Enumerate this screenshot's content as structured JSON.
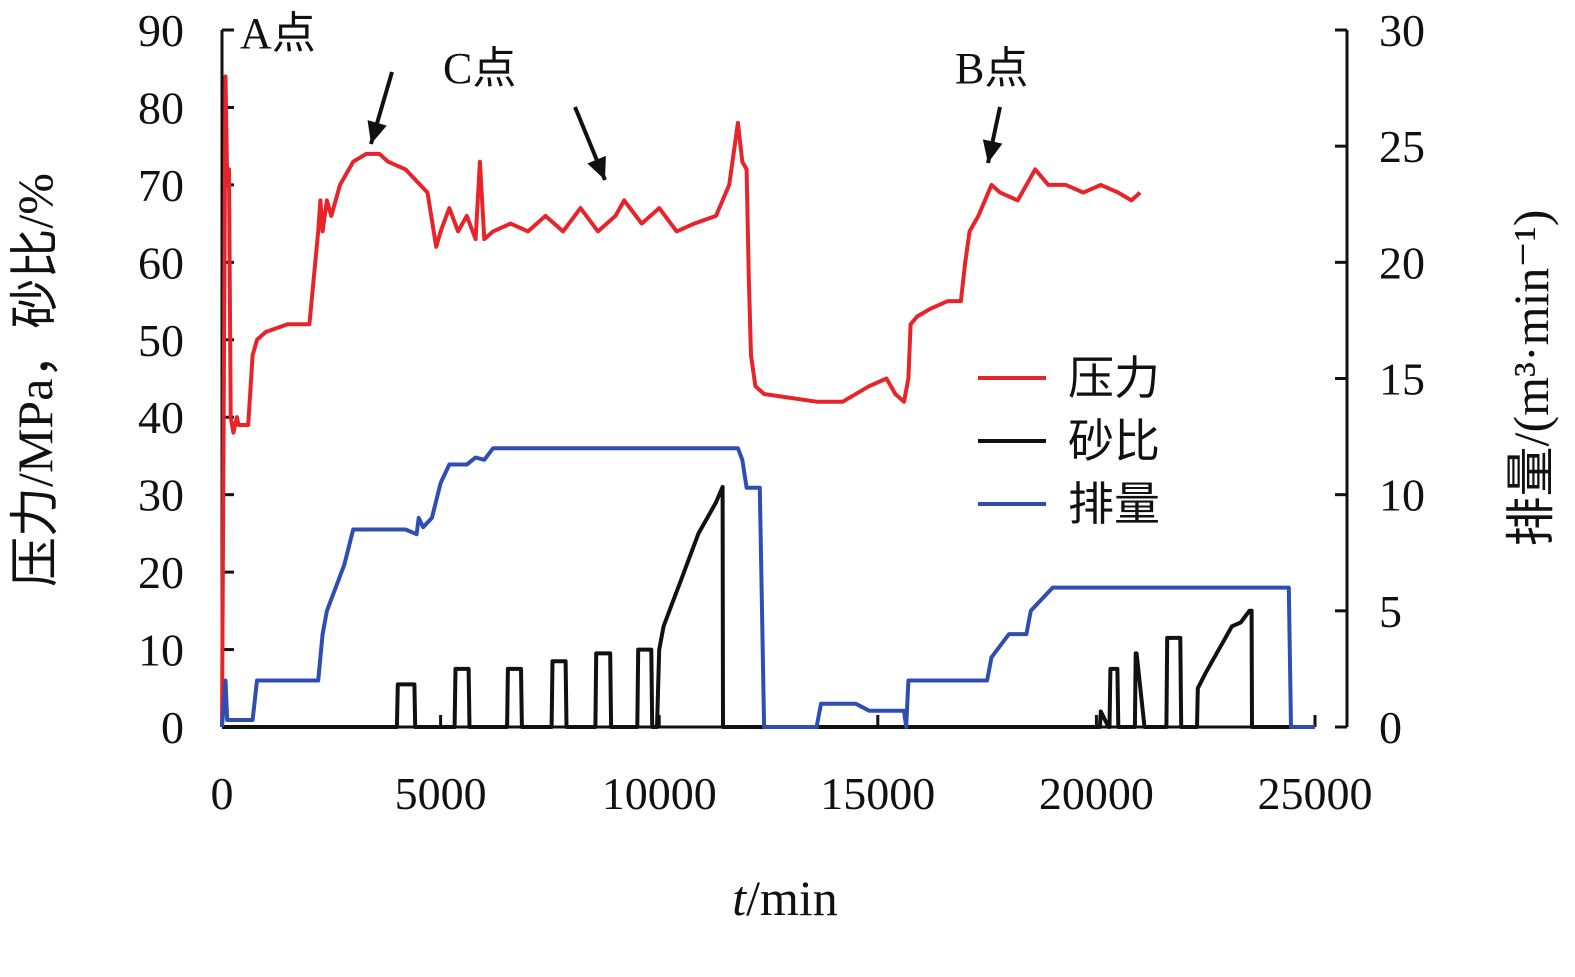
{
  "chart_data": {
    "type": "line",
    "xlabel_italic": "t",
    "xlabel_rest": "/min",
    "ylabel_left": "压力/MPa，砂比/%",
    "ylabel_right": "排量/(m³·min⁻¹)",
    "xlim": [
      0,
      25000
    ],
    "ylim_left": [
      0,
      90
    ],
    "ylim_right": [
      0,
      30
    ],
    "xticks": [
      0,
      5000,
      10000,
      15000,
      20000,
      25000
    ],
    "yticks_left": [
      0,
      10,
      20,
      30,
      40,
      50,
      60,
      70,
      80,
      90
    ],
    "yticks_right": [
      0,
      5,
      10,
      15,
      20,
      25,
      30
    ],
    "legend_position": "right-center",
    "series": [
      {
        "name": "压力",
        "axis": "left",
        "color": "#e8242b",
        "x": [
          0,
          80,
          120,
          160,
          200,
          260,
          300,
          340,
          380,
          600,
          700,
          800,
          1000,
          1500,
          2000,
          2200,
          2250,
          2300,
          2400,
          2500,
          2700,
          3000,
          3300,
          3600,
          3800,
          4200,
          4700,
          4900,
          5000,
          5200,
          5400,
          5600,
          5800,
          5900,
          6000,
          6200,
          6600,
          7000,
          7400,
          7800,
          8200,
          8600,
          9000,
          9200,
          9600,
          10000,
          10400,
          10800,
          11300,
          11600,
          11800,
          11900,
          12000,
          12050,
          12100,
          12200,
          12400,
          13000,
          13600,
          14200,
          14800,
          15200,
          15400,
          15600,
          15700,
          15750,
          15900,
          16200,
          16600,
          16900,
          17000,
          17100,
          17300,
          17600,
          17800,
          18200,
          18600,
          18900,
          19300,
          19700,
          20100,
          20500,
          20800,
          21000
        ],
        "values": [
          0,
          84,
          70,
          72,
          40,
          38,
          39,
          40,
          39,
          39,
          48,
          50,
          51,
          52,
          52,
          64,
          68,
          64,
          68,
          66,
          70,
          73,
          74,
          74,
          73,
          72,
          69,
          62,
          64,
          67,
          64,
          66,
          63,
          73,
          63,
          64,
          65,
          64,
          66,
          64,
          67,
          64,
          66,
          68,
          65,
          67,
          64,
          65,
          66,
          70,
          78,
          73,
          72,
          58,
          48,
          44,
          43,
          42.5,
          42,
          42,
          44,
          45,
          43,
          42,
          45,
          52,
          53,
          54,
          55,
          55,
          60,
          64,
          66,
          70,
          69,
          68,
          72,
          70,
          70,
          69,
          70,
          69,
          68,
          69
        ]
      },
      {
        "name": "砂比",
        "axis": "left",
        "color": "#111111",
        "x": [
          0,
          4000,
          4020,
          4400,
          4420,
          5000,
          5320,
          5340,
          5640,
          5660,
          6000,
          6520,
          6540,
          6840,
          6860,
          7200,
          7540,
          7560,
          7860,
          7880,
          8200,
          8540,
          8560,
          8880,
          8900,
          9200,
          9500,
          9520,
          9820,
          9840,
          9950,
          10000,
          10100,
          10300,
          10500,
          10700,
          10900,
          11100,
          11300,
          11450,
          11460,
          14000,
          20080,
          20100,
          20280,
          20300,
          20320,
          20480,
          20500,
          20520,
          20880,
          20900,
          20920,
          21100,
          21120,
          21600,
          21620,
          21640,
          21920,
          21940,
          22300,
          22320,
          22500,
          22700,
          22900,
          23100,
          23300,
          23500,
          23550,
          23560,
          25000
        ],
        "values": [
          0,
          0,
          5.5,
          5.5,
          0,
          0,
          0,
          7.5,
          7.5,
          0,
          0,
          0,
          7.5,
          7.5,
          0,
          0,
          0,
          8.5,
          8.5,
          0,
          0,
          0,
          9.5,
          9.5,
          0,
          0,
          0,
          10,
          10,
          0,
          0,
          10,
          13,
          16,
          19,
          22,
          25,
          27,
          29,
          31,
          0,
          0,
          0,
          2,
          0,
          0,
          7.5,
          7.5,
          0,
          0,
          0,
          9.5,
          9.5,
          0,
          0,
          0,
          11.5,
          11.5,
          11.5,
          0,
          0,
          5,
          7,
          9,
          11,
          13,
          13.5,
          15,
          15,
          0,
          0
        ]
      },
      {
        "name": "排量",
        "axis": "right",
        "color": "#2f4eb2",
        "x": [
          0,
          80,
          120,
          700,
          800,
          2000,
          2200,
          2300,
          2400,
          2600,
          2800,
          3000,
          4200,
          4450,
          4500,
          4600,
          4800,
          5000,
          5200,
          5600,
          5800,
          6000,
          6200,
          7000,
          9000,
          11000,
          11800,
          11900,
          12000,
          12300,
          12400,
          13600,
          13700,
          14500,
          14800,
          15600,
          15650,
          15700,
          17000,
          17500,
          17600,
          18000,
          18400,
          18500,
          19000,
          23000,
          24400,
          24450,
          25000
        ],
        "values": [
          0,
          2,
          0.3,
          0.3,
          2,
          2,
          2,
          4,
          5,
          6,
          7,
          8.5,
          8.5,
          8.3,
          9,
          8.6,
          9,
          10.5,
          11.3,
          11.3,
          11.6,
          11.5,
          12,
          12,
          12,
          12,
          12,
          11.5,
          10.3,
          10.3,
          0,
          0,
          1,
          1,
          0.7,
          0.7,
          0,
          2,
          2,
          2,
          3,
          4,
          4,
          5,
          6,
          6,
          6,
          0,
          0
        ]
      }
    ]
  },
  "annotations": [
    {
      "text": "A点"
    },
    {
      "text": "C点"
    },
    {
      "text": "B点"
    }
  ]
}
